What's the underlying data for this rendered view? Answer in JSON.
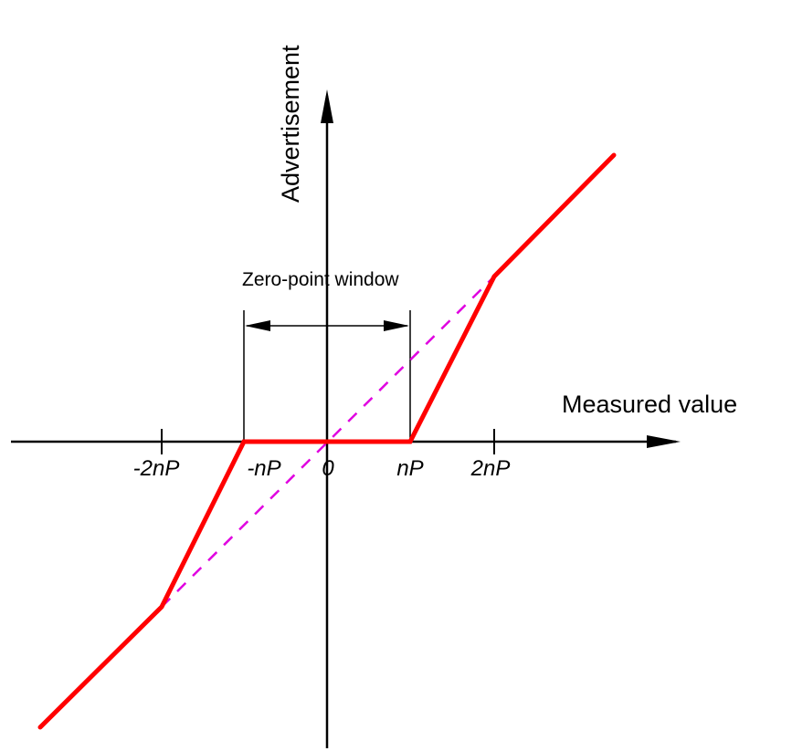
{
  "diagram": {
    "x_axis_label": "Measured value",
    "y_axis_label": "Advertisement",
    "zero_point_window_label": "Zero-point window",
    "tick_labels": [
      "-2nP",
      "-nP",
      "0",
      "nP",
      "2nP"
    ]
  },
  "colors": {
    "characteristic_curve": "#ff0000",
    "ideal_line": "#e000e0",
    "axes": "#000000"
  }
}
